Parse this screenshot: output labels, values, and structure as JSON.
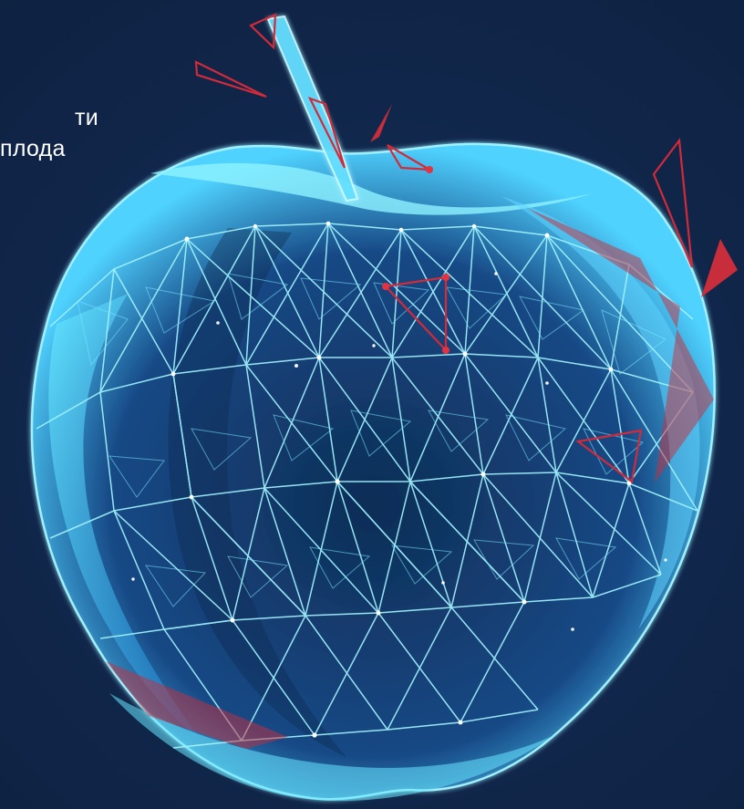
{
  "caption": {
    "line1": "ти",
    "line2": "плода"
  },
  "colors": {
    "background": "#10264a",
    "mesh_stroke": "#8ee6ff",
    "mesh_fill": "#2d86d6",
    "accent_red": "#d32a3a"
  }
}
